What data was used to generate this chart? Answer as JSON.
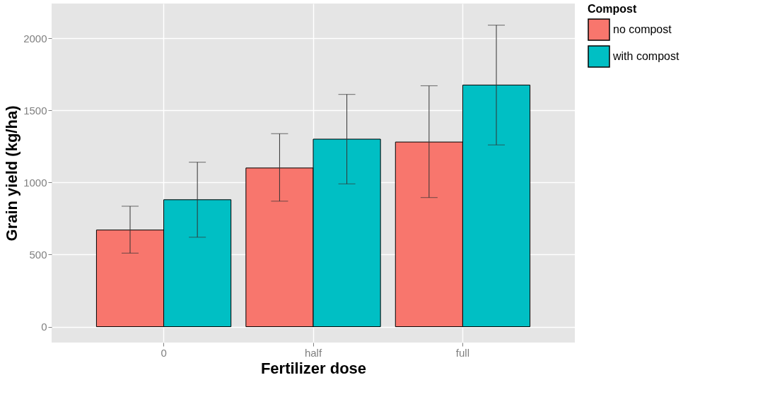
{
  "chart_data": {
    "type": "bar",
    "xlabel": "Fertilizer dose",
    "ylabel": "Grain yield (kg/ha)",
    "legend_title": "Compost",
    "categories": [
      "0",
      "half",
      "full"
    ],
    "series": [
      {
        "name": "no compost",
        "color": "#f8766d",
        "values": [
          670,
          1100,
          1280
        ],
        "errors": [
          [
            510,
            835
          ],
          [
            870,
            1338
          ],
          [
            895,
            1670
          ]
        ]
      },
      {
        "name": "with compost",
        "color": "#00bfc4",
        "values": [
          880,
          1300,
          1675
        ],
        "errors": [
          [
            620,
            1140
          ],
          [
            990,
            1610
          ],
          [
            1260,
            2090
          ]
        ]
      }
    ],
    "ylim": [
      -110,
      2240
    ],
    "yticks": [
      0,
      500,
      1000,
      1500,
      2000
    ],
    "grid": true,
    "legend": "right"
  }
}
